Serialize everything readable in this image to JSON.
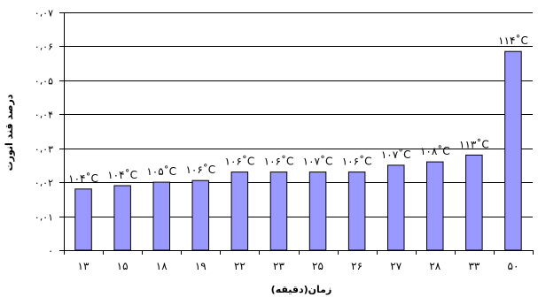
{
  "chart_data": {
    "type": "bar",
    "xlabel": "زمان(دقیقه)",
    "ylabel": "درصد قند انورت",
    "ylim": [
      0,
      0.07
    ],
    "y_ticks": [
      0,
      0.01,
      0.02,
      0.03,
      0.04,
      0.05,
      0.06,
      0.07
    ],
    "y_tick_labels": [
      "۰",
      "۰،۰۱",
      "۰،۰۲",
      "۰،۰۳",
      "۰،۰۴",
      "۰،۰۵",
      "۰،۰۶",
      "۰،۰۷"
    ],
    "grid": true,
    "legend": "none",
    "categories": [
      "۱۳",
      "۱۵",
      "۱۸",
      "۱۹",
      "۲۲",
      "۲۳",
      "۲۵",
      "۲۶",
      "۲۷",
      "۲۸",
      "۳۳",
      "۵۰"
    ],
    "values": [
      0.018,
      0.019,
      0.02,
      0.0205,
      0.023,
      0.023,
      0.023,
      0.023,
      0.025,
      0.026,
      0.028,
      0.0585
    ],
    "data_labels": [
      "۱۰۴˚C",
      "۱۰۴˚C",
      "۱۰۵˚C",
      "۱۰۶˚C",
      "۱۰۶˚C",
      "۱۰۶˚C",
      "۱۰۷˚C",
      "۱۰۶˚C",
      "۱۰۷˚C",
      "۱۰۸˚C",
      "۱۱۳˚C",
      "۱۱۴˚C"
    ],
    "bar_color": "#9999ff",
    "bar_border_color": "#000000"
  }
}
